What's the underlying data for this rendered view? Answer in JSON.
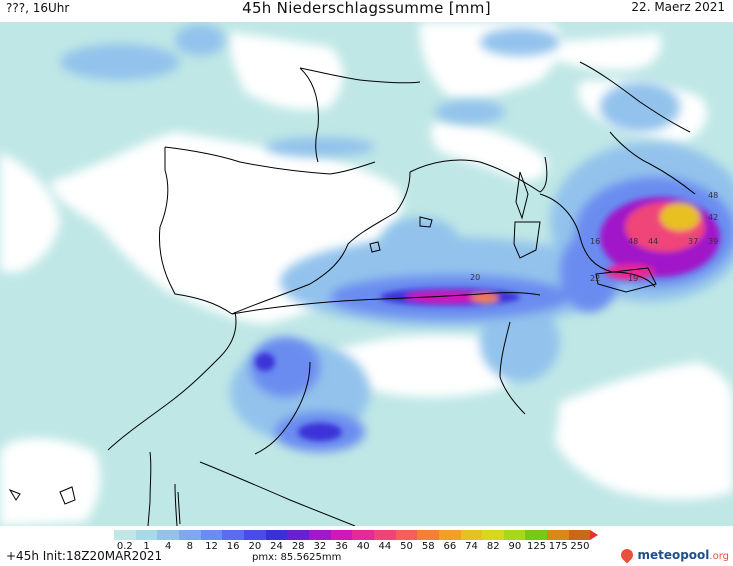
{
  "header": {
    "left_label": "???, 16Uhr",
    "title": "45h Niederschlagssumme [mm]",
    "date": "22. Maerz 2021"
  },
  "map": {
    "background_color": "#bfe7e6",
    "land_dry_color": "#ffffff",
    "coast_color": "#000000",
    "point_values": [
      "20",
      "16",
      "48",
      "44",
      "37",
      "39",
      "22",
      "19",
      "48",
      "42"
    ]
  },
  "legend": {
    "labels": [
      "0.2",
      "1",
      "4",
      "8",
      "12",
      "16",
      "20",
      "24",
      "28",
      "32",
      "36",
      "40",
      "44",
      "50",
      "58",
      "66",
      "74",
      "82",
      "90",
      "125",
      "175",
      "250"
    ],
    "colors": [
      "#bfe7e6",
      "#a8d9e8",
      "#93c3ec",
      "#7ea9ee",
      "#6b8cf0",
      "#5a6cf0",
      "#4a4ce8",
      "#3a30d8",
      "#6a20d0",
      "#a018c8",
      "#d018b8",
      "#e82898",
      "#f04478",
      "#f46058",
      "#f48038",
      "#f0a028",
      "#e8c020",
      "#d8d818",
      "#a8d818",
      "#78c818",
      "#d88818",
      "#c86818"
    ]
  },
  "footer": {
    "run_label": "+45h Init:18Z20MAR2021",
    "pmx_label": "pmx: 85.5625mm",
    "logo_text": "meteopool",
    "logo_suffix": ".org"
  }
}
